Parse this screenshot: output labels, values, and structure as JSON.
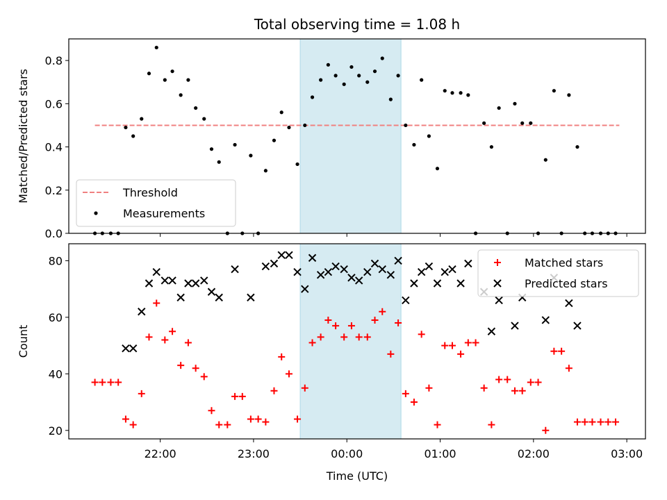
{
  "chart_data": {
    "type": "scatter",
    "title": "Total observing time = 1.08 h",
    "xlabel": "Time (UTC)",
    "x_ticks": [
      "22:00",
      "23:00",
      "00:00",
      "01:00",
      "02:00",
      "03:00"
    ],
    "x_tick_hours": [
      22,
      23,
      24,
      25,
      26,
      27
    ],
    "xlim_hours": [
      21.02,
      27.2
    ],
    "highlight_span_hours": [
      23.5,
      24.58
    ],
    "highlight_color": "#add8e6",
    "panels": [
      {
        "ylabel": "Matched/Predicted stars",
        "ylim": [
          0,
          0.9
        ],
        "y_ticks": [
          0.0,
          0.2,
          0.4,
          0.6,
          0.8
        ],
        "y_tick_labels": [
          "0.0",
          "0.2",
          "0.4",
          "0.6",
          "0.8"
        ],
        "threshold": {
          "name": "Threshold",
          "value": 0.5,
          "x_range": [
            21.3,
            26.92
          ],
          "color": "#f08080",
          "style": "dashed"
        },
        "series": [
          {
            "name": "Measurements",
            "color": "#000000",
            "marker": "dot",
            "x": [
              21.3,
              21.38,
              21.47,
              21.55,
              21.63,
              21.71,
              21.8,
              21.88,
              21.96,
              22.05,
              22.13,
              22.22,
              22.3,
              22.38,
              22.47,
              22.55,
              22.63,
              22.72,
              22.8,
              22.88,
              22.97,
              23.05,
              23.13,
              23.22,
              23.3,
              23.38,
              23.47,
              23.55,
              23.63,
              23.72,
              23.8,
              23.88,
              23.97,
              24.05,
              24.13,
              24.22,
              24.3,
              24.38,
              24.47,
              24.55,
              24.63,
              24.72,
              24.8,
              24.88,
              24.97,
              25.05,
              25.13,
              25.22,
              25.3,
              25.38,
              25.47,
              25.55,
              25.63,
              25.72,
              25.8,
              25.88,
              25.97,
              26.05,
              26.13,
              26.22,
              26.3,
              26.38,
              26.47,
              26.55,
              26.63,
              26.72,
              26.8,
              26.88
            ],
            "y": [
              0.0,
              0.0,
              0.0,
              0.0,
              0.49,
              0.45,
              0.53,
              0.74,
              0.86,
              0.71,
              0.75,
              0.64,
              0.71,
              0.58,
              0.53,
              0.39,
              0.33,
              0.0,
              0.41,
              0.0,
              0.36,
              0.0,
              0.29,
              0.43,
              0.56,
              0.49,
              0.32,
              0.5,
              0.63,
              0.71,
              0.78,
              0.73,
              0.69,
              0.77,
              0.73,
              0.7,
              0.75,
              0.81,
              0.62,
              0.73,
              0.5,
              0.41,
              0.71,
              0.45,
              0.3,
              0.66,
              0.65,
              0.65,
              0.64,
              0.0,
              0.51,
              0.4,
              0.58,
              0.0,
              0.6,
              0.51,
              0.51,
              0.0,
              0.34,
              0.66,
              0.0,
              0.64,
              0.4,
              0.0,
              0.0,
              0.0,
              0.0,
              0.0
            ]
          }
        ],
        "legend": {
          "position": "lower-left",
          "entries": [
            "Threshold",
            "Measurements"
          ]
        }
      },
      {
        "ylabel": "Count",
        "ylim": [
          17,
          86
        ],
        "y_ticks": [
          20,
          40,
          60,
          80
        ],
        "y_tick_labels": [
          "20",
          "40",
          "60",
          "80"
        ],
        "series": [
          {
            "name": "Matched stars",
            "color": "#ff0000",
            "marker": "plus",
            "x": [
              21.3,
              21.38,
              21.47,
              21.55,
              21.63,
              21.71,
              21.8,
              21.88,
              21.96,
              22.05,
              22.13,
              22.22,
              22.3,
              22.38,
              22.47,
              22.55,
              22.63,
              22.72,
              22.8,
              22.88,
              22.97,
              23.05,
              23.13,
              23.22,
              23.3,
              23.38,
              23.47,
              23.55,
              23.63,
              23.72,
              23.8,
              23.88,
              23.97,
              24.05,
              24.13,
              24.22,
              24.3,
              24.38,
              24.47,
              24.55,
              24.63,
              24.72,
              24.8,
              24.88,
              24.97,
              25.05,
              25.13,
              25.22,
              25.3,
              25.38,
              25.47,
              25.55,
              25.63,
              25.72,
              25.8,
              25.88,
              25.97,
              26.05,
              26.13,
              26.22,
              26.3,
              26.38,
              26.47,
              26.55,
              26.63,
              26.72,
              26.8,
              26.88
            ],
            "y": [
              37,
              37,
              37,
              37,
              24,
              22,
              33,
              53,
              65,
              52,
              55,
              43,
              51,
              42,
              39,
              27,
              22,
              22,
              32,
              32,
              24,
              24,
              23,
              34,
              46,
              40,
              24,
              35,
              51,
              53,
              59,
              57,
              53,
              57,
              53,
              53,
              59,
              62,
              47,
              58,
              33,
              30,
              54,
              35,
              22,
              50,
              50,
              47,
              51,
              51,
              35,
              22,
              38,
              38,
              34,
              34,
              37,
              37,
              20,
              48,
              48,
              42,
              23,
              23,
              23,
              23,
              23,
              23
            ]
          },
          {
            "name": "Predicted stars",
            "color": "#000000",
            "marker": "x",
            "x": [
              21.63,
              21.71,
              21.8,
              21.88,
              21.96,
              22.05,
              22.13,
              22.22,
              22.3,
              22.38,
              22.47,
              22.55,
              22.63,
              22.8,
              22.97,
              23.13,
              23.22,
              23.3,
              23.38,
              23.47,
              23.55,
              23.63,
              23.72,
              23.8,
              23.88,
              23.97,
              24.05,
              24.13,
              24.22,
              24.3,
              24.38,
              24.47,
              24.55,
              24.63,
              24.72,
              24.8,
              24.88,
              24.97,
              25.05,
              25.13,
              25.22,
              25.3,
              25.47,
              25.55,
              25.63,
              25.8,
              25.88,
              26.13,
              26.22,
              26.38,
              26.47
            ],
            "y": [
              49,
              49,
              62,
              72,
              76,
              73,
              73,
              67,
              72,
              72,
              73,
              69,
              67,
              77,
              67,
              78,
              79,
              82,
              82,
              76,
              70,
              81,
              75,
              76,
              78,
              77,
              74,
              73,
              76,
              79,
              77,
              75,
              80,
              66,
              72,
              76,
              78,
              72,
              76,
              77,
              72,
              79,
              69,
              55,
              66,
              57,
              67,
              59,
              74,
              65,
              57
            ]
          }
        ],
        "legend": {
          "position": "upper-right",
          "entries": [
            "Matched stars",
            "Predicted stars"
          ]
        }
      }
    ]
  }
}
